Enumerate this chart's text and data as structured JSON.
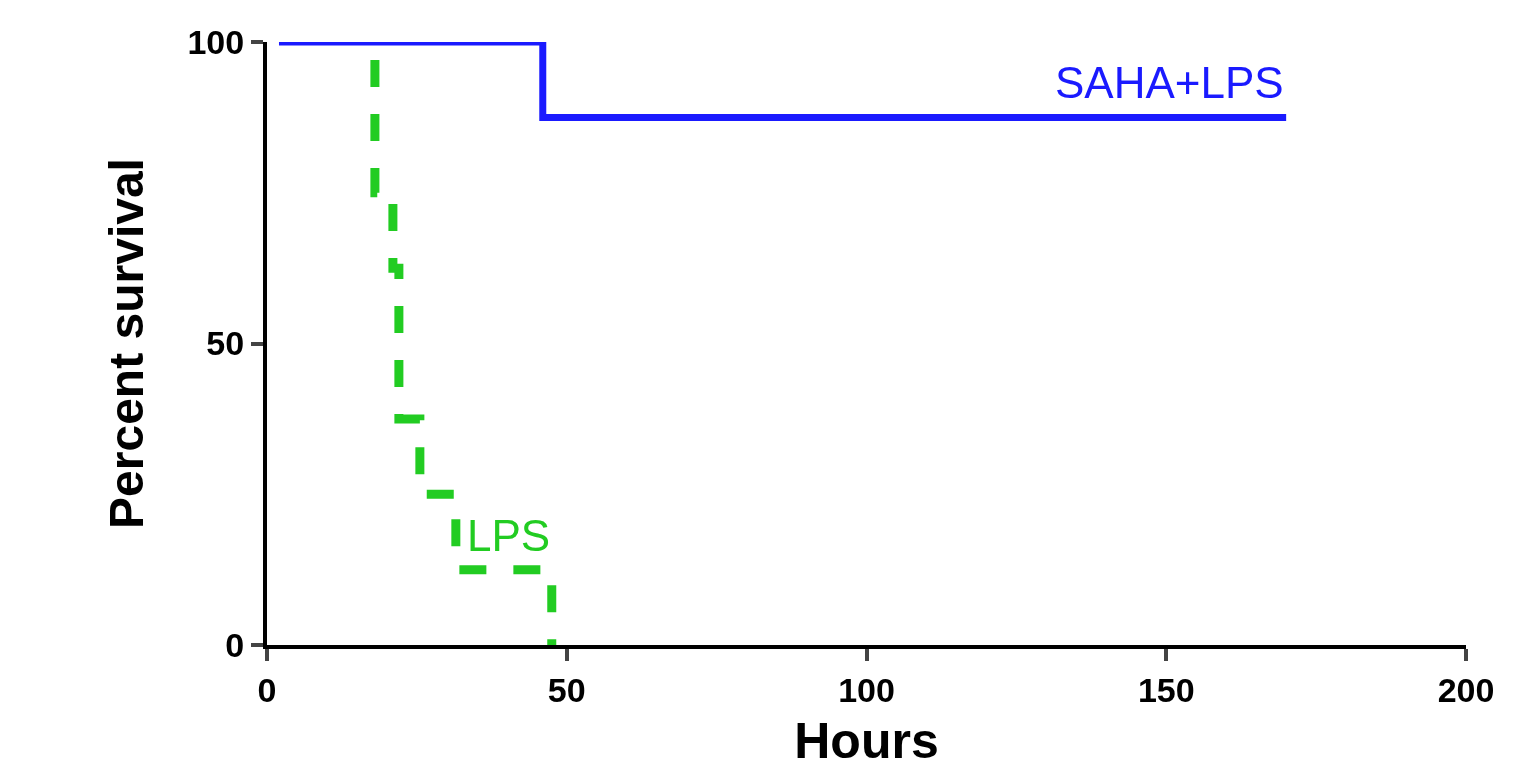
{
  "chart_data": {
    "type": "step",
    "xlabel": "Hours",
    "ylabel": "Percent survival",
    "xlim": [
      0,
      200
    ],
    "xticks": [
      0,
      50,
      100,
      150,
      200
    ],
    "ylim": [
      0,
      100
    ],
    "yticks": [
      0,
      50,
      100
    ],
    "grid": false,
    "legend": false,
    "series": [
      {
        "name": "SAHA+LPS",
        "color": "#1a1aff",
        "line_style": "solid",
        "x": [
          2,
          46,
          170
        ],
        "values": [
          100,
          87.5,
          87.5
        ]
      },
      {
        "name": "LPS",
        "color": "#22cc22",
        "line_style": "dashed",
        "x": [
          18,
          18,
          21,
          22,
          25.5,
          31.5,
          47.5
        ],
        "values": [
          97,
          75,
          62.5,
          37.5,
          25,
          12.5,
          0
        ]
      }
    ]
  }
}
